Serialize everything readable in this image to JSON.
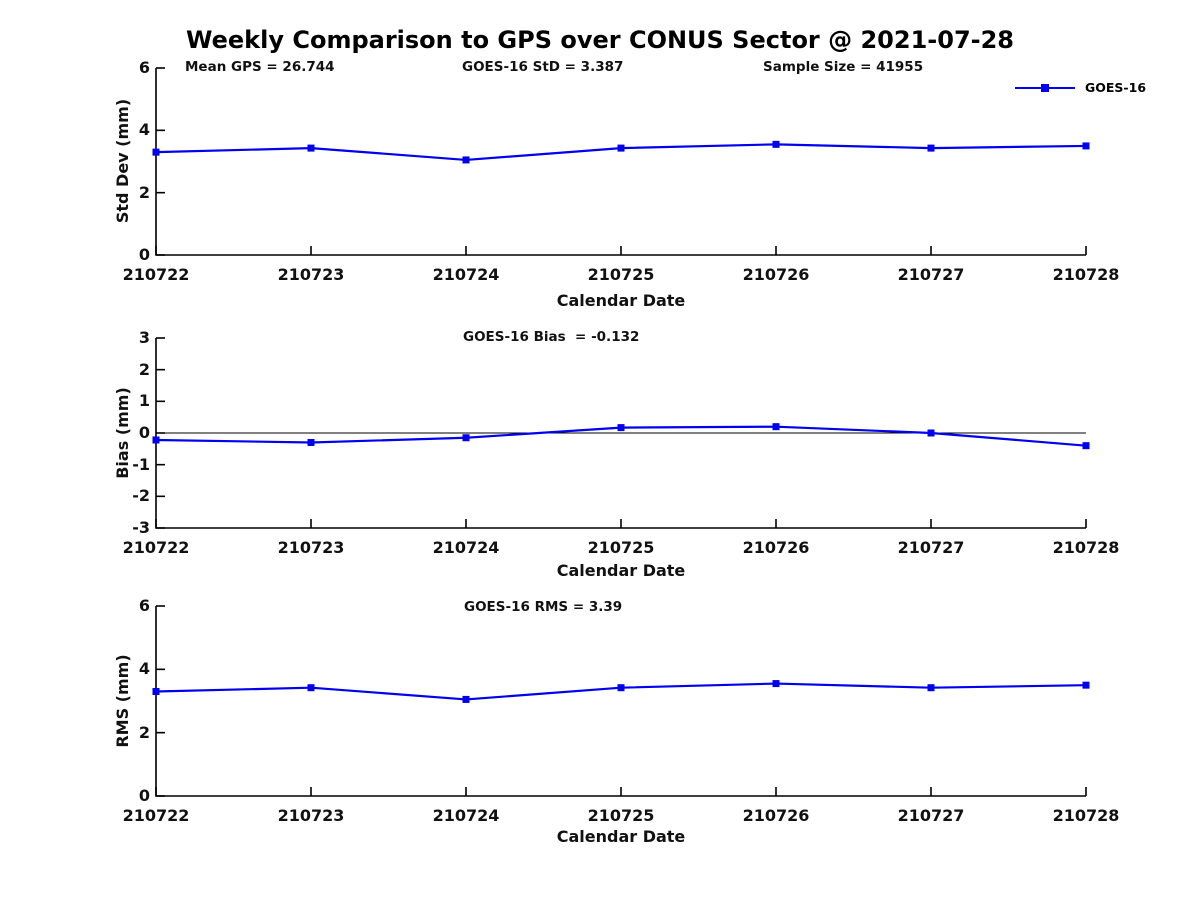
{
  "title": "Weekly Comparison to GPS over CONUS Sector @ 2021-07-28",
  "legend": {
    "label": "GOES-16",
    "line_color": "#0000ee"
  },
  "header_annotations": {
    "mean_gps": "Mean GPS = 26.744",
    "goes16_std": "GOES-16 StD = 3.387",
    "sample_size": "Sample Size = 41955"
  },
  "chart_data": [
    {
      "type": "line",
      "id": "std-dev",
      "ylabel": "Std Dev (mm)",
      "xlabel": "Calendar Date",
      "categories": [
        "210722",
        "210723",
        "210724",
        "210725",
        "210726",
        "210727",
        "210728"
      ],
      "series": [
        {
          "name": "GOES-16",
          "color": "#0000ee",
          "values": [
            3.3,
            3.43,
            3.05,
            3.43,
            3.55,
            3.43,
            3.5
          ]
        }
      ],
      "ylim": [
        0,
        6
      ],
      "yticks": [
        0,
        2,
        4,
        6
      ],
      "grid": false,
      "legend_position": "upper-right-outside"
    },
    {
      "type": "line",
      "id": "bias",
      "title": "GOES-16 Bias  = -0.132",
      "ylabel": "Bias (mm)",
      "xlabel": "Calendar Date",
      "categories": [
        "210722",
        "210723",
        "210724",
        "210725",
        "210726",
        "210727",
        "210728"
      ],
      "series": [
        {
          "name": "GOES-16",
          "color": "#0000ee",
          "values": [
            -0.22,
            -0.3,
            -0.15,
            0.17,
            0.2,
            0.0,
            -0.4
          ]
        }
      ],
      "ylim": [
        -3,
        3
      ],
      "yticks": [
        3,
        2,
        1,
        0,
        -1,
        -2,
        -3
      ],
      "zero_line": true,
      "grid": false
    },
    {
      "type": "line",
      "id": "rms",
      "title": "GOES-16 RMS = 3.39",
      "ylabel": "RMS (mm)",
      "xlabel": "Calendar Date",
      "categories": [
        "210722",
        "210723",
        "210724",
        "210725",
        "210726",
        "210727",
        "210728"
      ],
      "series": [
        {
          "name": "GOES-16",
          "color": "#0000ee",
          "values": [
            3.3,
            3.42,
            3.05,
            3.42,
            3.55,
            3.42,
            3.5
          ]
        }
      ],
      "ylim": [
        0,
        6
      ],
      "yticks": [
        0,
        2,
        4,
        6
      ],
      "grid": false
    }
  ]
}
